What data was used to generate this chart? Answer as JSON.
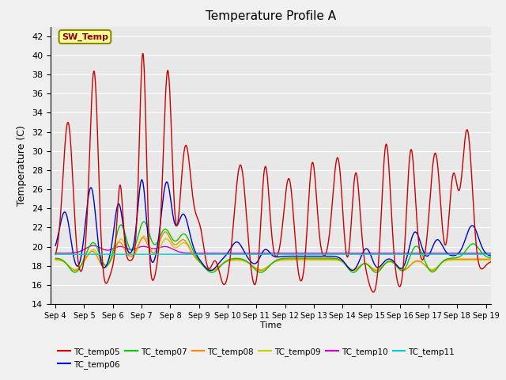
{
  "title": "Temperature Profile A",
  "ylabel": "Temperature (C)",
  "xlabel": "Time",
  "xlim_days": [
    3.83,
    19.17
  ],
  "ylim": [
    14,
    43
  ],
  "yticks": [
    14,
    16,
    18,
    20,
    22,
    24,
    26,
    28,
    30,
    32,
    34,
    36,
    38,
    40,
    42
  ],
  "xtick_labels": [
    "Sep 4",
    "Sep 5",
    "Sep 6",
    "Sep 7",
    "Sep 8",
    "Sep 9",
    "Sep 10",
    "Sep 11",
    "Sep 12",
    "Sep 13",
    "Sep 14",
    "Sep 15",
    "Sep 16",
    "Sep 17",
    "Sep 18",
    "Sep 19"
  ],
  "xtick_days": [
    4,
    5,
    6,
    7,
    8,
    9,
    10,
    11,
    12,
    13,
    14,
    15,
    16,
    17,
    18,
    19
  ],
  "bg_color": "#e8e8e8",
  "grid_color": "#ffffff",
  "series_colors": {
    "TC_temp05": "#cc0000",
    "TC_temp06": "#0000cc",
    "TC_temp07": "#00cc00",
    "TC_temp08": "#ff8800",
    "TC_temp09": "#cccc00",
    "TC_temp10": "#cc00cc",
    "TC_temp11": "#00cccc"
  },
  "sw_temp_label": "SW_Temp",
  "sw_temp_box_color": "#ffff99",
  "sw_temp_border_color": "#8B8B00",
  "sw_temp_text_color": "#8B0000",
  "fig_width": 6.4,
  "fig_height": 4.8,
  "dpi": 100
}
